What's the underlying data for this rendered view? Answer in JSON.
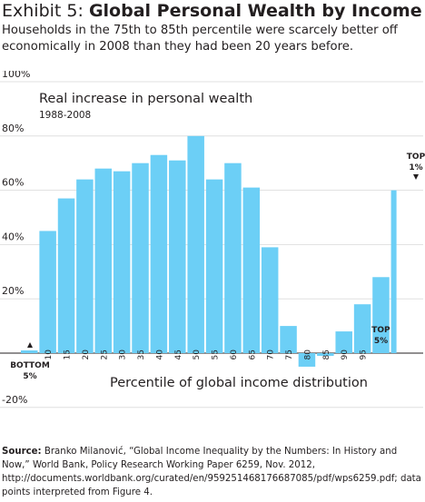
{
  "header": {
    "exhibit": "Exhibit 5:",
    "title": "Global Personal Wealth by Income",
    "subtitle": "Households in the 75th to 85th percentile were scarcely better off economically in 2008 than they had been 20 years before."
  },
  "chart_data": {
    "type": "bar",
    "title": "Real increase in personal wealth",
    "subtitle": "1988-2008",
    "xlabel": "Percentile of global income distribution",
    "ylabel": "",
    "ylim": [
      -20,
      100
    ],
    "yticks": [
      -20,
      0,
      20,
      40,
      60,
      80,
      100
    ],
    "ytick_labels": [
      "-20%",
      "",
      "20%",
      "40%",
      "60%",
      "80%",
      "100%"
    ],
    "grid": true,
    "categories": [
      "BOTTOM 5%",
      "10",
      "15",
      "20",
      "25",
      "30",
      "35",
      "40",
      "45",
      "50",
      "55",
      "60",
      "65",
      "70",
      "75",
      "80",
      "85",
      "90",
      "95",
      "TOP 5%",
      "TOP 1%"
    ],
    "values": [
      1,
      45,
      57,
      64,
      68,
      67,
      70,
      73,
      71,
      80,
      64,
      70,
      61,
      39,
      10,
      -5,
      -1,
      8,
      18,
      28,
      60
    ],
    "bar_color": "#6ccff6",
    "annotations": {
      "bottom": [
        "BOTTOM",
        "5%"
      ],
      "top5": [
        "TOP",
        "5%"
      ],
      "top1": [
        "TOP",
        "1%"
      ]
    }
  },
  "source": {
    "label": "Source:",
    "text": " Branko Milanović, “Global Income Inequality by the Numbers: In History and Now,” World Bank, Policy Research Working Paper 6259, Nov. 2012, http://documents.worldbank.org/curated/en/959251468176687085/pdf/wps6259.pdf; data points interpreted from Figure 4."
  }
}
